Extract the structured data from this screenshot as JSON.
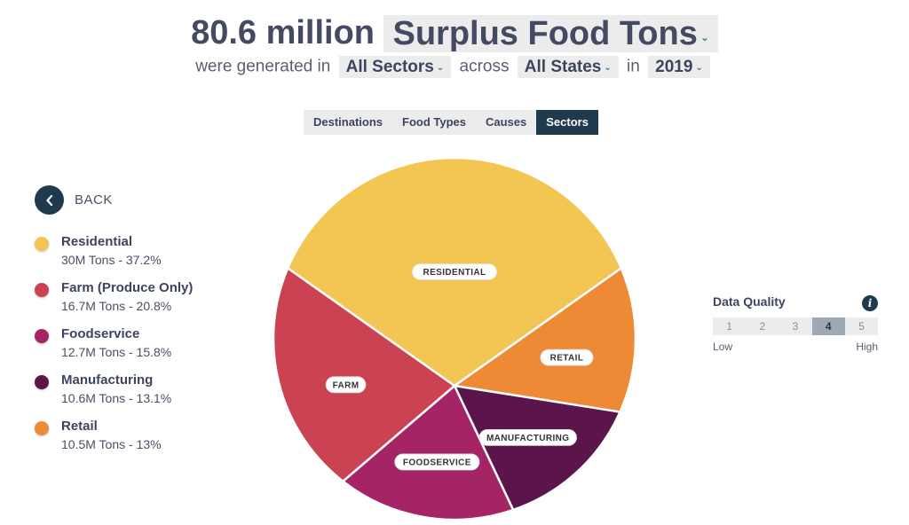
{
  "header": {
    "total": "80.6 million",
    "metric_dropdown": "Surplus Food Tons",
    "text_generated": "were generated in",
    "sector_dropdown": "All Sectors",
    "text_across": "across",
    "state_dropdown": "All States",
    "text_in": "in",
    "year_dropdown": "2019"
  },
  "tabs": [
    {
      "label": "Destinations",
      "active": false
    },
    {
      "label": "Food Types",
      "active": false
    },
    {
      "label": "Causes",
      "active": false
    },
    {
      "label": "Sectors",
      "active": true
    }
  ],
  "back": {
    "label": "BACK"
  },
  "legend": [
    {
      "name": "Residential",
      "value": "30M Tons - 37.2%",
      "color": "#f3c553"
    },
    {
      "name": "Farm (Produce Only)",
      "value": "16.7M Tons - 20.8%",
      "color": "#cb4352"
    },
    {
      "name": "Foodservice",
      "value": "12.7M Tons - 15.8%",
      "color": "#a42466"
    },
    {
      "name": "Manufacturing",
      "value": "10.6M Tons - 13.1%",
      "color": "#5b154a"
    },
    {
      "name": "Retail",
      "value": "10.5M Tons - 13%",
      "color": "#ee8a36"
    }
  ],
  "chart_data": {
    "type": "pie",
    "slices": [
      {
        "label": "RESIDENTIAL",
        "value": 37.2,
        "tons_millions": 30,
        "color": "#f3c553"
      },
      {
        "label": "RETAIL",
        "value": 13.0,
        "tons_millions": 10.5,
        "color": "#ee8a36"
      },
      {
        "label": "MANUFACTURING",
        "value": 13.1,
        "tons_millions": 10.6,
        "color": "#5b154a"
      },
      {
        "label": "FOODSERVICE",
        "value": 15.8,
        "tons_millions": 12.7,
        "color": "#a42466"
      },
      {
        "label": "FARM",
        "value": 20.8,
        "tons_millions": 16.7,
        "color": "#cb4352"
      }
    ]
  },
  "data_quality": {
    "title": "Data Quality",
    "info_icon": "info-icon",
    "levels": [
      "1",
      "2",
      "3",
      "4",
      "5"
    ],
    "selected": 4,
    "low_label": "Low",
    "high_label": "High"
  }
}
